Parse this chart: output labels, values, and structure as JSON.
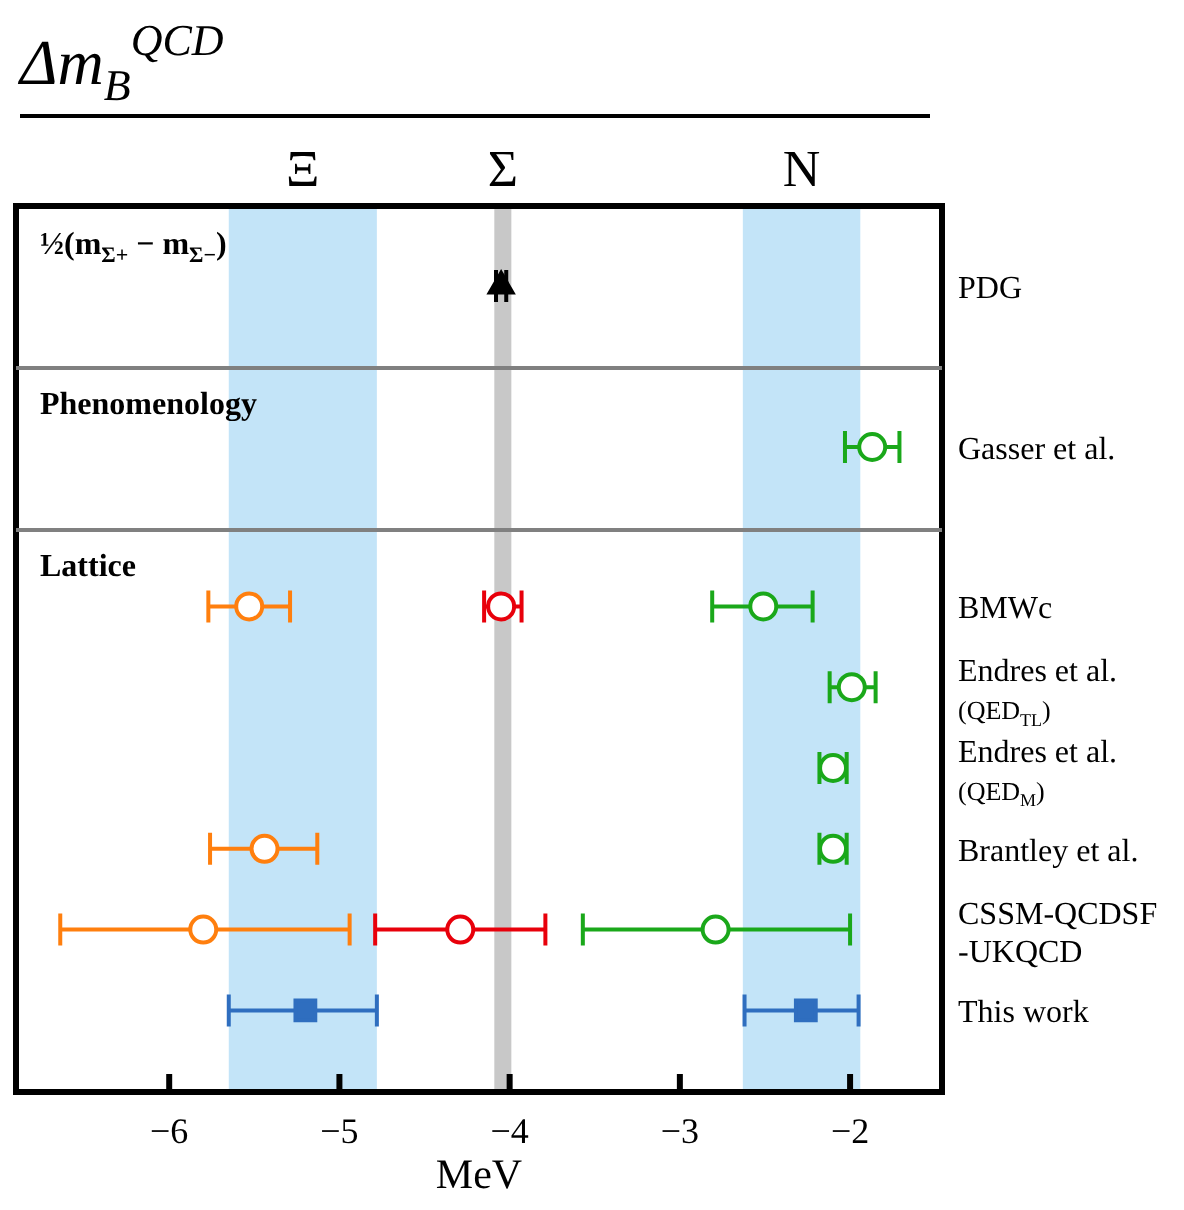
{
  "chart_data": [
    {
      "type": "scatter",
      "orientation": "horizontal",
      "title": "Δm$_{B}$$^{QCD}$",
      "categories": [
        "PDG"
      ],
      "xlim": [
        -6.9,
        -1.46
      ],
      "tick_labels": "y",
      "grid": false,
      "legend": false,
      "annotations": [
        "½(m$_{Σ+}$ − m$_{Σ−}$)"
      ],
      "bands": [
        {
          "axis": "x",
          "from": -5.65,
          "to": -4.78,
          "label": "Ξ",
          "color": "#c3e4f8"
        },
        {
          "axis": "x",
          "from": -4.09,
          "to": -3.99,
          "label": "Σ",
          "color": "#c8c8c8"
        },
        {
          "axis": "x",
          "from": -2.63,
          "to": -1.94,
          "label": "N",
          "color": "#c3e4f8"
        }
      ],
      "series": [
        {
          "color": "#000000",
          "marker": "triangle",
          "values": [
            -4.05
          ],
          "errors": [
            [
              -4.08,
              -4.02
            ]
          ]
        }
      ]
    },
    {
      "type": "scatter",
      "orientation": "horizontal",
      "categories": [
        "Gasser et al."
      ],
      "xlim": [
        -6.9,
        -1.46
      ],
      "tick_labels": "y",
      "grid": false,
      "legend": false,
      "annotations": [
        "Phenomenology"
      ],
      "bands": [
        {
          "axis": "x",
          "from": -5.65,
          "to": -4.78,
          "color": "#c3e4f8"
        },
        {
          "axis": "x",
          "from": -4.09,
          "to": -3.99,
          "color": "#c8c8c8"
        },
        {
          "axis": "x",
          "from": -2.63,
          "to": -1.94,
          "color": "#c3e4f8"
        }
      ],
      "series": [
        {
          "color": "#1aa81a",
          "marker": "circle",
          "values": [
            -1.87
          ],
          "errors": [
            [
              -2.03,
              -1.71
            ]
          ]
        }
      ]
    },
    {
      "type": "scatter",
      "orientation": "horizontal",
      "categories": [
        "BMWc",
        "Endres et al.\n(QED$_{TL}$)",
        "Endres et al.\n(QED$_{M}$)",
        "Brantley et al.",
        "CSSM-QCDSF\n-UKQCD",
        "This work"
      ],
      "xlim": [
        -6.9,
        -1.46
      ],
      "xticks": [
        {
          "value": -6,
          "label": "−6"
        },
        {
          "value": -5,
          "label": "−5"
        },
        {
          "value": -4,
          "label": "−4"
        },
        {
          "value": -3,
          "label": "−3"
        },
        {
          "value": -2,
          "label": "−2"
        }
      ],
      "xlabel": "MeV",
      "grid": false,
      "legend": false,
      "annotations": [
        "Lattice"
      ],
      "bands": [
        {
          "axis": "x",
          "from": -5.65,
          "to": -4.78,
          "color": "#c3e4f8"
        },
        {
          "axis": "x",
          "from": -4.09,
          "to": -3.99,
          "color": "#c8c8c8"
        },
        {
          "axis": "x",
          "from": -2.63,
          "to": -1.94,
          "color": "#c3e4f8"
        }
      ],
      "series": [
        {
          "color": "#ff7f0e",
          "marker": "circle",
          "values": [
            -5.53,
            null,
            null,
            null,
            null,
            null
          ],
          "errors": [
            [
              -5.77,
              -5.29
            ],
            null,
            null,
            null,
            null,
            null
          ]
        },
        {
          "color": "#ff7f0e",
          "marker": "circle",
          "values": [
            null,
            null,
            null,
            -5.44,
            -5.8,
            null
          ],
          "errors": [
            null,
            null,
            null,
            [
              -5.76,
              -5.13
            ],
            [
              -6.64,
              -4.94
            ],
            null
          ]
        },
        {
          "color": "#2f6ebf",
          "marker": "square",
          "values": [
            null,
            null,
            null,
            null,
            null,
            -5.2
          ],
          "errors": [
            null,
            null,
            null,
            null,
            null,
            [
              -5.65,
              -4.78
            ]
          ]
        },
        {
          "color": "#e8000b",
          "marker": "circle",
          "values": [
            -4.05,
            null,
            null,
            null,
            null,
            null
          ],
          "errors": [
            [
              -4.15,
              -3.93
            ],
            null,
            null,
            null,
            null,
            null
          ]
        },
        {
          "color": "#e8000b",
          "marker": "circle",
          "values": [
            null,
            null,
            null,
            null,
            -4.29,
            null
          ],
          "errors": [
            null,
            null,
            null,
            null,
            [
              -4.79,
              -3.79
            ],
            null
          ]
        },
        {
          "color": "#1aa81a",
          "marker": "circle",
          "values": [
            -2.51,
            null,
            null,
            null,
            null,
            null
          ],
          "errors": [
            [
              -2.81,
              -2.22
            ],
            null,
            null,
            null,
            null,
            null
          ]
        },
        {
          "color": "#1aa81a",
          "marker": "circle",
          "values": [
            null,
            -1.99,
            -2.1,
            -2.1,
            -2.79,
            null
          ],
          "errors": [
            null,
            [
              -2.12,
              -1.85
            ],
            [
              -2.18,
              -2.02
            ],
            [
              -2.18,
              -2.02
            ],
            [
              -3.57,
              -2.0
            ],
            null
          ]
        },
        {
          "color": "#2f6ebf",
          "marker": "square",
          "values": [
            null,
            null,
            null,
            null,
            null,
            -2.26
          ],
          "errors": [
            null,
            null,
            null,
            null,
            null,
            [
              -2.62,
              -1.95
            ]
          ]
        }
      ]
    }
  ]
}
